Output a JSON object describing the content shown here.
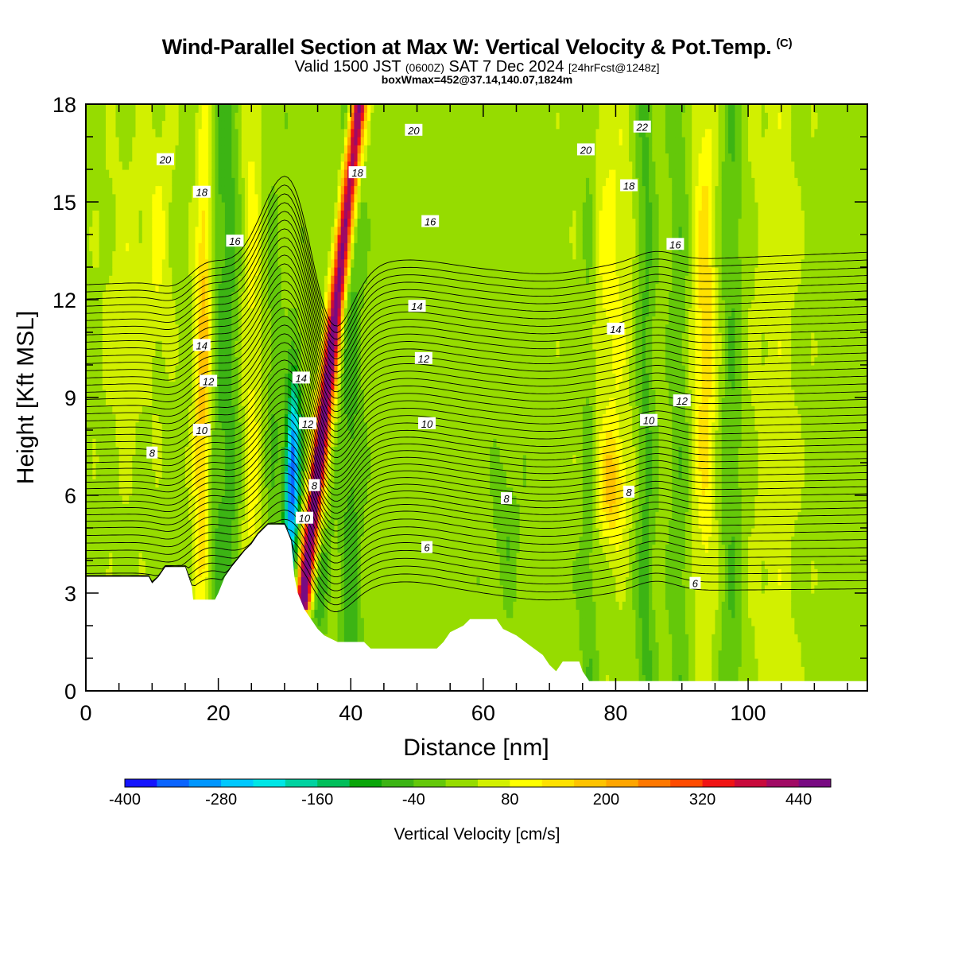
{
  "header": {
    "title": "Wind-Parallel Section at Max W: Vertical Velocity & Pot.Temp.",
    "copyright": "(C)",
    "valid_prefix": "Valid 1500 JST",
    "valid_utc": "(0600Z)",
    "valid_date": "SAT 7 Dec 2024",
    "forecast": "[24hrFcst@1248z]",
    "box_info": "boxWmax=452@37.14,140.07,1824m"
  },
  "chart_data": {
    "type": "heatmap",
    "xlabel": "Distance [nm]",
    "ylabel": "Height [Kft MSL]",
    "xlim": [
      0,
      118
    ],
    "ylim": [
      0,
      18
    ],
    "x_ticks": [
      "0",
      "20",
      "40",
      "60",
      "80",
      "100"
    ],
    "x_tick_values": [
      0,
      20,
      40,
      60,
      80,
      100
    ],
    "y_ticks": [
      "0",
      "3",
      "6",
      "9",
      "12",
      "15",
      "18"
    ],
    "y_tick_values": [
      0,
      3,
      6,
      9,
      12,
      15,
      18
    ],
    "colorbar": {
      "label": "Vertical Velocity [cm/s]",
      "tick_labels": [
        "-400",
        "-280",
        "-160",
        "-40",
        "80",
        "200",
        "320",
        "440"
      ],
      "levels": [
        -400,
        -360,
        -320,
        -280,
        -240,
        -200,
        -160,
        -120,
        -80,
        -40,
        0,
        40,
        80,
        120,
        160,
        200,
        240,
        280,
        320,
        360,
        400,
        440,
        480
      ],
      "colors": [
        "#1414ff",
        "#0a64ff",
        "#0096ff",
        "#00c8ff",
        "#00e6e6",
        "#00d2a0",
        "#00be5a",
        "#0aa50a",
        "#3cb414",
        "#64c80a",
        "#96dc00",
        "#d2f000",
        "#ffff00",
        "#ffe100",
        "#ffc300",
        "#ffa500",
        "#ff7800",
        "#ff4b00",
        "#f01414",
        "#c80a3c",
        "#a00a64",
        "#780a82"
      ]
    },
    "terrain_kft": [
      [
        0,
        3.5
      ],
      [
        5,
        3.5
      ],
      [
        9.5,
        3.5
      ],
      [
        10,
        3.3
      ],
      [
        11,
        3.5
      ],
      [
        12,
        3.8
      ],
      [
        15,
        3.8
      ],
      [
        16,
        3.2
      ],
      [
        16.2,
        2.8
      ],
      [
        19.5,
        2.8
      ],
      [
        20,
        3.0
      ],
      [
        21,
        3.5
      ],
      [
        22,
        3.8
      ],
      [
        24,
        4.3
      ],
      [
        25,
        4.5
      ],
      [
        26,
        4.8
      ],
      [
        27,
        5.0
      ],
      [
        27.5,
        5.1
      ],
      [
        30,
        5.1
      ],
      [
        31,
        4.6
      ],
      [
        31.5,
        3.5
      ],
      [
        32,
        3.0
      ],
      [
        33,
        2.5
      ],
      [
        34,
        2.2
      ],
      [
        35,
        1.9
      ],
      [
        36,
        1.7
      ],
      [
        38,
        1.5
      ],
      [
        42,
        1.5
      ],
      [
        43,
        1.3
      ],
      [
        47,
        1.3
      ],
      [
        53,
        1.3
      ],
      [
        54,
        1.5
      ],
      [
        55,
        1.8
      ],
      [
        57,
        2.0
      ],
      [
        58,
        2.2
      ],
      [
        62,
        2.2
      ],
      [
        63,
        1.9
      ],
      [
        65,
        1.7
      ],
      [
        67,
        1.4
      ],
      [
        69,
        1.1
      ],
      [
        70,
        0.8
      ],
      [
        71,
        0.6
      ],
      [
        72,
        0.9
      ],
      [
        74.5,
        0.9
      ],
      [
        75,
        0.6
      ],
      [
        76,
        0.3
      ],
      [
        118,
        0.3
      ]
    ],
    "theta_contours": [
      {
        "label": "6",
        "base_kft": 2.9
      },
      {
        "label": "8",
        "base_kft": 3.6
      },
      {
        "label": "10",
        "base_kft": 4.3
      },
      {
        "label": "12",
        "base_kft": 5.0
      },
      {
        "label": "14",
        "base_kft": 5.6
      },
      {
        "label": "16",
        "base_kft": 6.2
      },
      {
        "label": "18",
        "base_kft": 6.8
      },
      {
        "label": "20",
        "base_kft": 7.4
      }
    ],
    "contour_labels": [
      {
        "text": "8",
        "x": 10,
        "y": 7.3
      },
      {
        "text": "10",
        "x": 17.5,
        "y": 8.0
      },
      {
        "text": "12",
        "x": 18.5,
        "y": 9.5
      },
      {
        "text": "14",
        "x": 17.5,
        "y": 10.6
      },
      {
        "text": "16",
        "x": 22.5,
        "y": 13.8
      },
      {
        "text": "18",
        "x": 17.5,
        "y": 15.3
      },
      {
        "text": "20",
        "x": 12,
        "y": 16.3
      },
      {
        "text": "14",
        "x": 32.5,
        "y": 9.6
      },
      {
        "text": "12",
        "x": 33.5,
        "y": 8.2
      },
      {
        "text": "8",
        "x": 34.5,
        "y": 6.3
      },
      {
        "text": "10",
        "x": 33,
        "y": 5.3
      },
      {
        "text": "18",
        "x": 41,
        "y": 15.9
      },
      {
        "text": "20",
        "x": 49.5,
        "y": 17.2
      },
      {
        "text": "16",
        "x": 52,
        "y": 14.4
      },
      {
        "text": "14",
        "x": 50,
        "y": 11.8
      },
      {
        "text": "12",
        "x": 51,
        "y": 10.2
      },
      {
        "text": "10",
        "x": 51.5,
        "y": 8.2
      },
      {
        "text": "8",
        "x": 63.5,
        "y": 5.9
      },
      {
        "text": "6",
        "x": 51.5,
        "y": 4.4
      },
      {
        "text": "20",
        "x": 75.5,
        "y": 16.6
      },
      {
        "text": "22",
        "x": 84,
        "y": 17.3
      },
      {
        "text": "18",
        "x": 82,
        "y": 15.5
      },
      {
        "text": "16",
        "x": 89,
        "y": 13.7
      },
      {
        "text": "14",
        "x": 80,
        "y": 11.1
      },
      {
        "text": "12",
        "x": 90,
        "y": 8.9
      },
      {
        "text": "10",
        "x": 85,
        "y": 8.3
      },
      {
        "text": "8",
        "x": 82,
        "y": 6.1
      },
      {
        "text": "6",
        "x": 92,
        "y": 3.3
      }
    ]
  }
}
